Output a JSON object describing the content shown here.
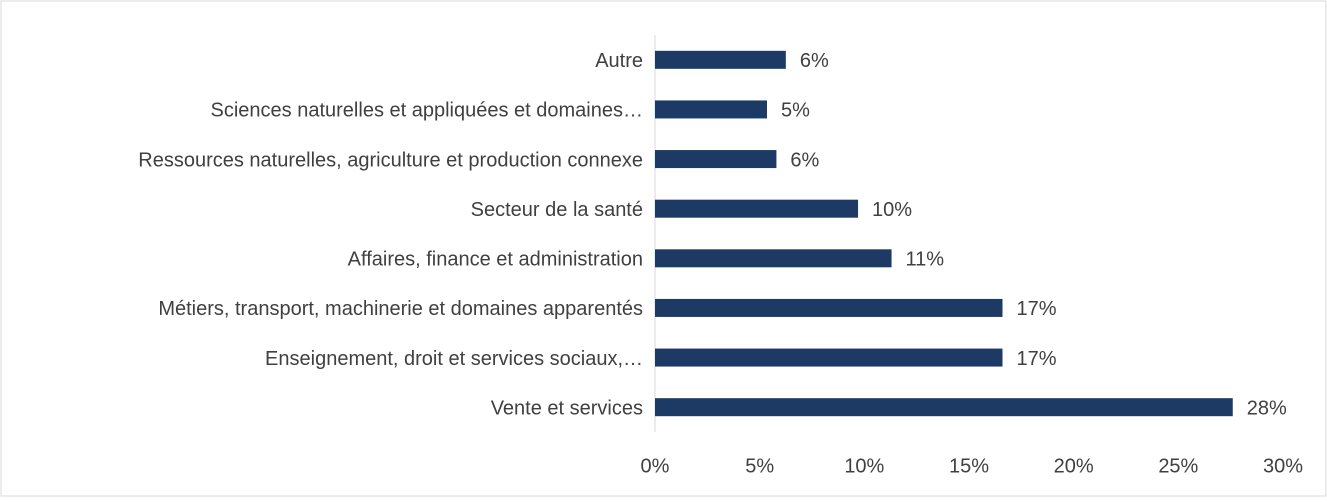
{
  "chart_data": {
    "type": "bar",
    "orientation": "horizontal",
    "categories": [
      "Autre",
      "Sciences naturelles et appliquées et domaines…",
      "Ressources naturelles, agriculture et production connexe",
      "Secteur de la santé",
      "Affaires, finance et administration",
      "Métiers, transport, machinerie et domaines apparentés",
      "Enseignement, droit et services sociaux,…",
      "Vente et services"
    ],
    "values": [
      6.25,
      5.35,
      5.8,
      9.7,
      11.3,
      16.6,
      16.6,
      27.6
    ],
    "value_labels": [
      "6%",
      "5%",
      "6%",
      "10%",
      "11%",
      "17%",
      "17%",
      "28%"
    ],
    "color": "#1c3a64",
    "xlim": [
      0,
      30
    ],
    "xticks": [
      {
        "value": 0,
        "label": "0%"
      },
      {
        "value": 5,
        "label": "5%"
      },
      {
        "value": 10,
        "label": "10%"
      },
      {
        "value": 15,
        "label": "15%"
      },
      {
        "value": 20,
        "label": "20%"
      },
      {
        "value": 25,
        "label": "25%"
      },
      {
        "value": 30,
        "label": "30%"
      }
    ],
    "grid": false
  }
}
